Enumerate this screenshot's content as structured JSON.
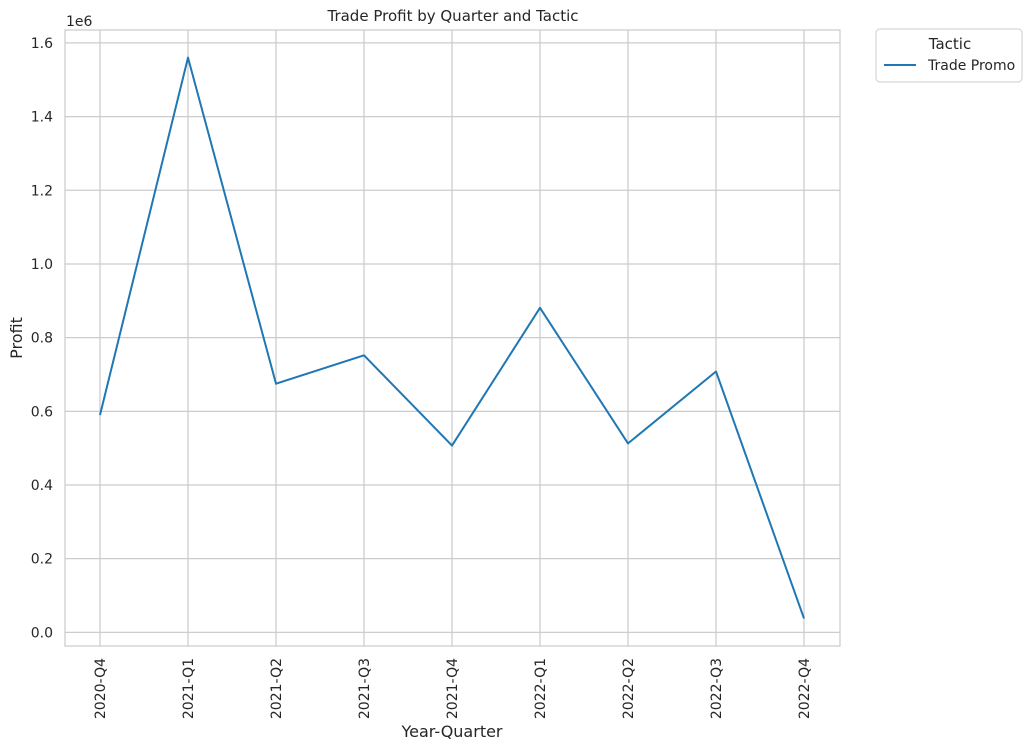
{
  "chart_data": {
    "type": "line",
    "title": "Trade Profit by Quarter and Tactic",
    "xlabel": "Year-Quarter",
    "ylabel": "Profit",
    "y_offset_label": "1e6",
    "categories": [
      "2020-Q4",
      "2021-Q1",
      "2021-Q2",
      "2021-Q3",
      "2021-Q4",
      "2022-Q1",
      "2022-Q2",
      "2022-Q3",
      "2022-Q4"
    ],
    "series": [
      {
        "name": "Trade Promo",
        "color": "#1f77b4",
        "values": [
          590000,
          1560000,
          675000,
          752000,
          507000,
          881000,
          513000,
          708000,
          38000
        ]
      }
    ],
    "y_ticks": [
      0,
      200000,
      400000,
      600000,
      800000,
      1000000,
      1200000,
      1400000,
      1600000
    ],
    "y_tick_labels": [
      "0.0",
      "0.2",
      "0.4",
      "0.6",
      "0.8",
      "1.0",
      "1.2",
      "1.4",
      "1.6"
    ],
    "ylim": [
      -37000,
      1635000
    ],
    "grid": true,
    "legend": {
      "title": "Tactic",
      "placement": "outside-top-right"
    }
  },
  "colors": {
    "grid": "#cccccc",
    "frame": "#cccccc",
    "text": "#262626"
  }
}
